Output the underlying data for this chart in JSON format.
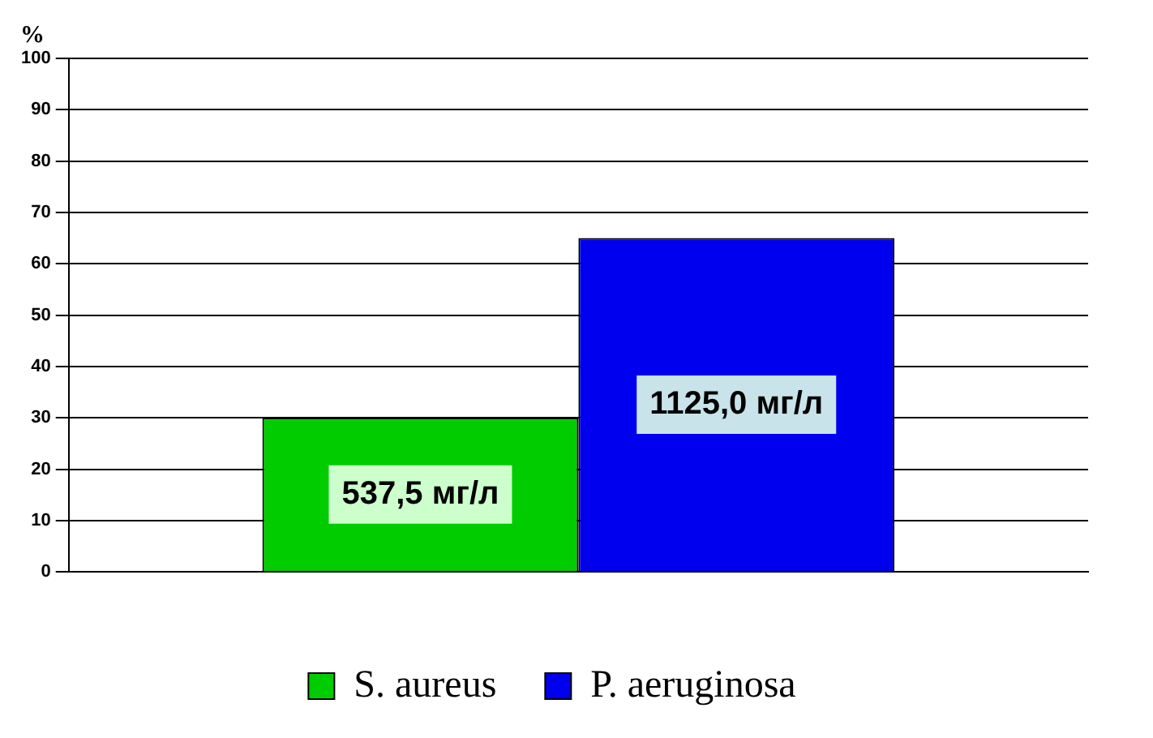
{
  "chart_data": {
    "type": "bar",
    "ylabel": "%",
    "categories": [
      null
    ],
    "series": [
      {
        "name": "S. aureus",
        "color": "#00cc00",
        "values": [
          30
        ]
      },
      {
        "name": "P. aeruginosa",
        "color": "#0000ee",
        "values": [
          65
        ]
      }
    ],
    "annotations": [
      "537,5 мг/л",
      "1125,0 мг/л"
    ],
    "ylim": [
      0,
      100
    ],
    "yticks": [
      0,
      10,
      20,
      30,
      40,
      50,
      60,
      70,
      80,
      90,
      100
    ],
    "grid": "y",
    "legend": "bottom"
  }
}
